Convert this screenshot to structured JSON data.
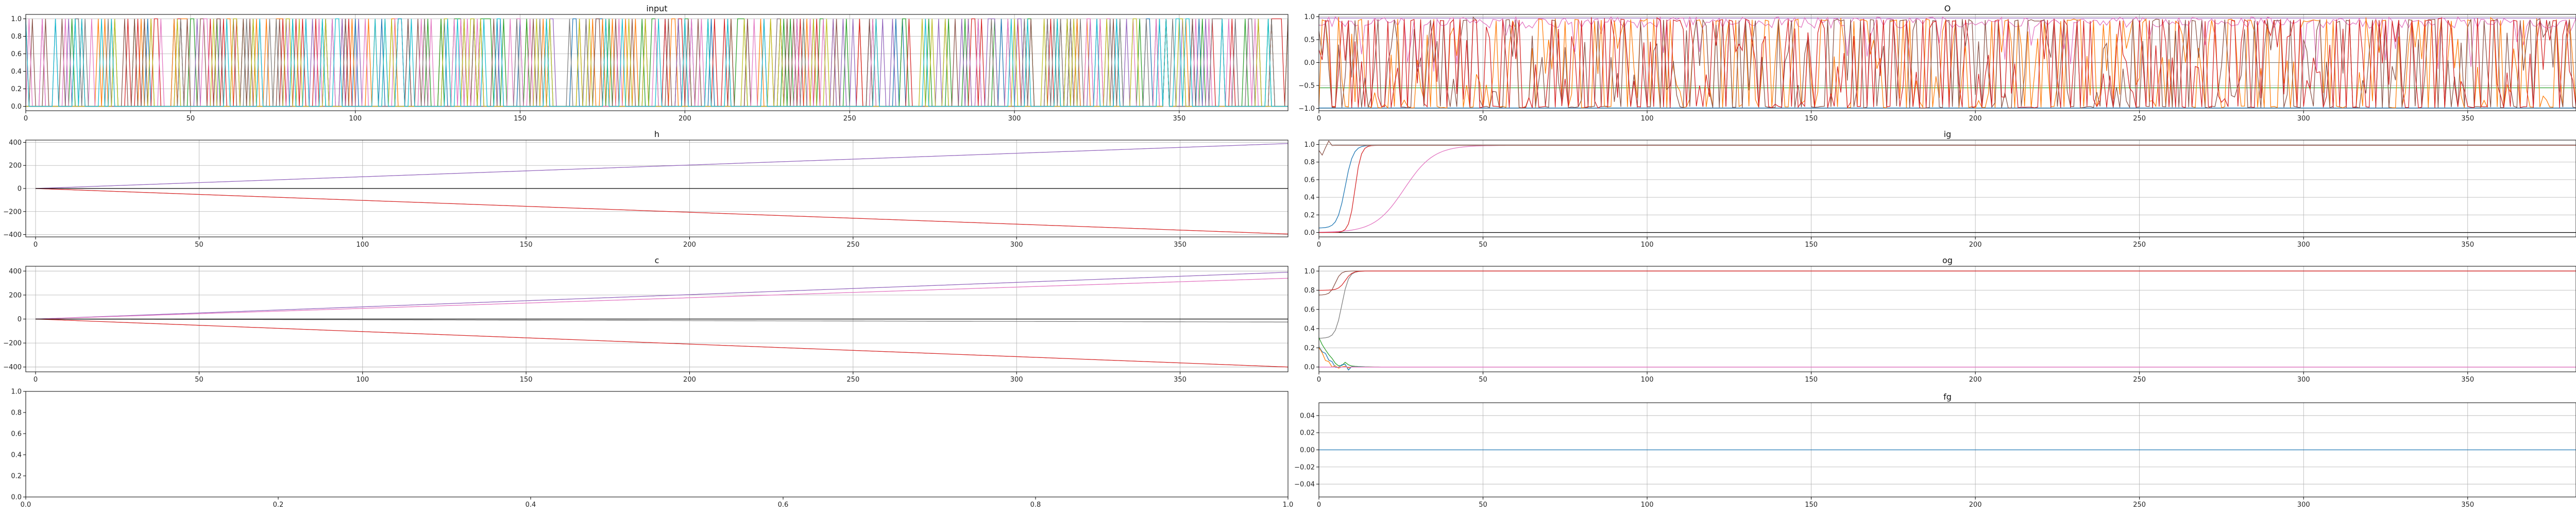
{
  "colors": {
    "c0": "#1f77b4",
    "c1": "#ff7f0e",
    "c2": "#2ca02c",
    "c3": "#d62728",
    "c4": "#9467bd",
    "c5": "#8c564b",
    "c6": "#e377c2",
    "c7": "#7f7f7f",
    "c8": "#bcbd22",
    "c9": "#17becf",
    "gridline": "#b0b0b0",
    "spine": "#000000"
  },
  "chart_data": [
    {
      "id": "input",
      "type": "line",
      "title": "input",
      "xlim": [
        0,
        383
      ],
      "ylim": [
        -0.05,
        1.05
      ],
      "xticks": [
        0,
        50,
        100,
        150,
        200,
        250,
        300,
        350
      ],
      "yticks": [
        0.0,
        0.2,
        0.4,
        0.6,
        0.8,
        1.0
      ],
      "ytick_labels": [
        "0.0",
        "0.2",
        "0.4",
        "0.6",
        "0.8",
        "1.0"
      ],
      "grid": true,
      "series": [
        {
          "color": "c0",
          "pattern": "binary_spikes",
          "seed": 1
        },
        {
          "color": "c1",
          "pattern": "binary_spikes",
          "seed": 2
        },
        {
          "color": "c2",
          "pattern": "binary_spikes",
          "seed": 3
        },
        {
          "color": "c3",
          "pattern": "binary_spikes",
          "seed": 4
        },
        {
          "color": "c4",
          "pattern": "binary_spikes",
          "seed": 5
        },
        {
          "color": "c5",
          "pattern": "binary_spikes",
          "seed": 6
        },
        {
          "color": "c6",
          "pattern": "binary_spikes",
          "seed": 7
        },
        {
          "color": "c7",
          "pattern": "binary_spikes",
          "seed": 8
        },
        {
          "color": "c8",
          "pattern": "binary_spikes",
          "seed": 9
        },
        {
          "color": "c9",
          "pattern": "binary_spikes",
          "seed": 10
        }
      ]
    },
    {
      "id": "o",
      "type": "line",
      "title": "O",
      "xlim": [
        0,
        383
      ],
      "ylim": [
        -1.05,
        1.05
      ],
      "xticks": [
        0,
        50,
        100,
        150,
        200,
        250,
        300,
        350
      ],
      "yticks": [
        -1.0,
        -0.5,
        0.0,
        0.5,
        1.0
      ],
      "ytick_labels": [
        "−1.0",
        "−0.5",
        "0.0",
        "0.5",
        "1.0"
      ],
      "grid": true,
      "series": [
        {
          "color": "c4",
          "pattern": "flat",
          "value": 0.97
        },
        {
          "color": "c0",
          "pattern": "flat",
          "value": -0.99
        },
        {
          "color": "c2",
          "pattern": "flat",
          "value": -0.55
        },
        {
          "color": "c7",
          "pattern": "flat",
          "value": 0.0
        },
        {
          "color": "c6",
          "pattern": "noisy_high",
          "seed": 21
        },
        {
          "color": "c1",
          "pattern": "oscillate",
          "seed": 22
        },
        {
          "color": "c5",
          "pattern": "oscillate",
          "seed": 23
        },
        {
          "color": "c3",
          "pattern": "oscillate",
          "seed": 24
        }
      ]
    },
    {
      "id": "h",
      "type": "line",
      "title": "h",
      "xlim": [
        -3,
        383
      ],
      "ylim": [
        -420,
        420
      ],
      "xticks": [
        0,
        50,
        100,
        150,
        200,
        250,
        300,
        350
      ],
      "yticks": [
        -400,
        -200,
        0,
        200,
        400
      ],
      "ytick_labels": [
        "−400",
        "−200",
        "0",
        "200",
        "400"
      ],
      "grid": true,
      "series": [
        {
          "color": "c4",
          "pattern": "linear",
          "end": 390
        },
        {
          "color": "c3",
          "pattern": "linear",
          "end": -395
        },
        {
          "color": "spine",
          "pattern": "linear",
          "end": 0
        }
      ]
    },
    {
      "id": "ig",
      "type": "line",
      "title": "ig",
      "xlim": [
        0,
        383
      ],
      "ylim": [
        -0.05,
        1.05
      ],
      "xticks": [
        0,
        50,
        100,
        150,
        200,
        250,
        300,
        350
      ],
      "yticks": [
        0.0,
        0.2,
        0.4,
        0.6,
        0.8,
        1.0
      ],
      "ytick_labels": [
        "0.0",
        "0.2",
        "0.4",
        "0.6",
        "0.8",
        "1.0"
      ],
      "grid": true,
      "series": [
        {
          "color": "spine",
          "pattern": "flat",
          "value": 0.0
        },
        {
          "color": "c6",
          "pattern": "sigmoid",
          "mid": 26,
          "width": 4.5,
          "start": 0.0,
          "end": 0.99
        },
        {
          "color": "c0",
          "pattern": "sigmoid",
          "mid": 8,
          "width": 1.2,
          "start": 0.05,
          "end": 0.99
        },
        {
          "color": "c3",
          "pattern": "sigmoid",
          "mid": 11,
          "width": 0.9,
          "start": 0.0,
          "end": 0.99
        },
        {
          "color": "c5",
          "pattern": "sigmoid_down",
          "mid": 2,
          "width": 0.6,
          "start": 0.93,
          "end": 0.99
        }
      ]
    },
    {
      "id": "c",
      "type": "line",
      "title": "c",
      "xlim": [
        -3,
        383
      ],
      "ylim": [
        -440,
        440
      ],
      "xticks": [
        0,
        50,
        100,
        150,
        200,
        250,
        300,
        350
      ],
      "yticks": [
        -400,
        -200,
        0,
        200,
        400
      ],
      "ytick_labels": [
        "−400",
        "−200",
        "0",
        "200",
        "400"
      ],
      "grid": true,
      "series": [
        {
          "color": "c4",
          "pattern": "linear",
          "end": 390
        },
        {
          "color": "c6",
          "pattern": "linear",
          "end": 340
        },
        {
          "color": "c3",
          "pattern": "linear",
          "end": -400
        },
        {
          "color": "c7",
          "pattern": "linear",
          "end": -25
        },
        {
          "color": "spine",
          "pattern": "linear",
          "end": 0
        }
      ]
    },
    {
      "id": "og",
      "type": "line",
      "title": "og",
      "xlim": [
        0,
        383
      ],
      "ylim": [
        -0.05,
        1.05
      ],
      "xticks": [
        0,
        50,
        100,
        150,
        200,
        250,
        300,
        350
      ],
      "yticks": [
        0.0,
        0.2,
        0.4,
        0.6,
        0.8,
        1.0
      ],
      "ytick_labels": [
        "0.0",
        "0.2",
        "0.4",
        "0.6",
        "0.8",
        "1.0"
      ],
      "grid": true,
      "series": [
        {
          "color": "c7",
          "pattern": "sigmoid",
          "mid": 7,
          "width": 1.0,
          "start": 0.3,
          "end": 1.0
        },
        {
          "color": "c5",
          "pattern": "sigmoid",
          "mid": 5,
          "width": 0.8,
          "start": 0.75,
          "end": 1.0
        },
        {
          "color": "c3",
          "pattern": "sigmoid",
          "mid": 8,
          "width": 1.0,
          "start": 0.8,
          "end": 1.0
        },
        {
          "color": "c2",
          "pattern": "decay",
          "start": 0.3,
          "end": 0.0,
          "tau": 3
        },
        {
          "color": "c0",
          "pattern": "decay",
          "start": 0.25,
          "end": 0.0,
          "tau": 2.5
        },
        {
          "color": "c1",
          "pattern": "decay",
          "start": 0.2,
          "end": 0.0,
          "tau": 2
        },
        {
          "color": "c4",
          "pattern": "flat",
          "value": 0.0
        },
        {
          "color": "c6",
          "pattern": "flat",
          "value": 0.0
        }
      ]
    },
    {
      "id": "empty",
      "type": "line",
      "title": "",
      "xlim": [
        0,
        1
      ],
      "ylim": [
        0,
        1
      ],
      "xticks": [
        0,
        0.2,
        0.4,
        0.6,
        0.8,
        1.0
      ],
      "xtick_labels": [
        "0.0",
        "0.2",
        "0.4",
        "0.6",
        "0.8",
        "1.0"
      ],
      "yticks": [
        0,
        0.2,
        0.4,
        0.6,
        0.8,
        1.0
      ],
      "ytick_labels": [
        "0.0",
        "0.2",
        "0.4",
        "0.6",
        "0.8",
        "1.0"
      ],
      "grid": false,
      "series": []
    },
    {
      "id": "fg",
      "type": "line",
      "title": "fg",
      "xlim": [
        0,
        383
      ],
      "ylim": [
        -0.055,
        0.055
      ],
      "xticks": [
        0,
        50,
        100,
        150,
        200,
        250,
        300,
        350
      ],
      "yticks": [
        -0.04,
        -0.02,
        0.0,
        0.02,
        0.04
      ],
      "ytick_labels": [
        "−0.04",
        "−0.02",
        "0.00",
        "0.02",
        "0.04"
      ],
      "grid": true,
      "series": [
        {
          "color": "c0",
          "pattern": "flat",
          "value": 0.0
        }
      ]
    }
  ]
}
